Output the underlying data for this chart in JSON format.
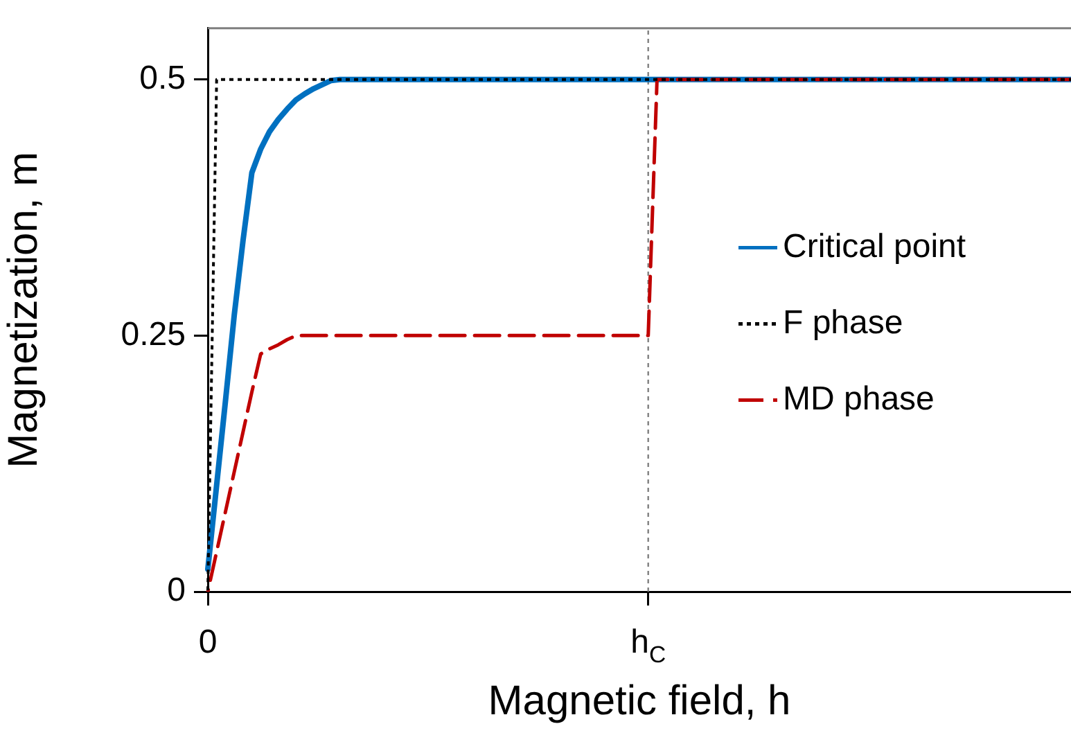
{
  "chart_data": {
    "type": "line",
    "xlabel": "Magnetic field, h",
    "ylabel": "Magnetization, m",
    "categories": [
      "0",
      null,
      null,
      null,
      null,
      null,
      null,
      null,
      null,
      null,
      null,
      null,
      null,
      null,
      null,
      null,
      null,
      null,
      null,
      null,
      null,
      null,
      null,
      null,
      null,
      null,
      null,
      null,
      null,
      null,
      null,
      null,
      null,
      null,
      null,
      null,
      null,
      null,
      null,
      null,
      null,
      null,
      null,
      null,
      null,
      null,
      null,
      null,
      null,
      null,
      "h$_{C}$",
      null,
      null,
      null,
      null,
      null,
      null,
      null,
      null,
      null,
      null,
      null,
      null,
      null,
      null,
      null,
      null,
      null,
      null,
      null,
      null,
      null,
      null,
      null,
      null,
      null,
      null,
      null,
      null,
      null,
      null,
      null,
      null,
      null,
      null,
      null,
      null,
      null,
      null,
      null,
      null,
      null,
      null,
      null,
      null,
      null,
      null,
      null,
      null
    ],
    "ylim": [
      0,
      0.55
    ],
    "yticks": [
      0,
      0.25,
      0.5
    ],
    "series": [
      {
        "name": "Critical point",
        "color": "#0070c0",
        "line_style": "solid",
        "values": [
          0.022,
          0.104,
          0.186,
          0.27,
          0.343,
          0.409,
          0.432,
          0.449,
          0.461,
          0.471,
          0.48,
          0.486,
          0.491,
          0.495,
          0.499,
          0.5,
          0.5,
          0.5,
          0.5,
          0.5,
          0.5,
          0.5,
          0.5,
          0.5,
          0.5,
          0.5,
          0.5,
          0.5,
          0.5,
          0.5,
          0.5,
          0.5,
          0.5,
          0.5,
          0.5,
          0.5,
          0.5,
          0.5,
          0.5,
          0.5,
          0.5,
          0.5,
          0.5,
          0.5,
          0.5,
          0.5,
          0.5,
          0.5,
          0.5,
          0.5,
          0.5,
          0.5,
          0.5,
          0.5,
          0.5,
          0.5,
          0.5,
          0.5,
          0.5,
          0.5,
          0.5,
          0.5,
          0.5,
          0.5,
          0.5,
          0.5,
          0.5,
          0.5,
          0.5,
          0.5,
          0.5,
          0.5,
          0.5,
          0.5,
          0.5,
          0.5,
          0.5,
          0.5,
          0.5,
          0.5,
          0.5,
          0.5,
          0.5,
          0.5,
          0.5,
          0.5,
          0.5,
          0.5,
          0.5,
          0.5,
          0.5,
          0.5,
          0.5,
          0.5,
          0.5,
          0.5,
          0.5,
          0.5,
          0.5
        ]
      },
      {
        "name": "F phase",
        "color": "#000000",
        "line_style": "dotted",
        "values": [
          0,
          0.5,
          0.5,
          0.5,
          0.5,
          0.5,
          0.5,
          0.5,
          0.5,
          0.5,
          0.5,
          0.5,
          0.5,
          0.5,
          0.5,
          0.5,
          0.5,
          0.5,
          0.5,
          0.5,
          0.5,
          0.5,
          0.5,
          0.5,
          0.5,
          0.5,
          0.5,
          0.5,
          0.5,
          0.5,
          0.5,
          0.5,
          0.5,
          0.5,
          0.5,
          0.5,
          0.5,
          0.5,
          0.5,
          0.5,
          0.5,
          0.5,
          0.5,
          0.5,
          0.5,
          0.5,
          0.5,
          0.5,
          0.5,
          0.5,
          0.5,
          0.5,
          0.5,
          0.5,
          0.5,
          0.5,
          0.5,
          0.5,
          0.5,
          0.5,
          0.5,
          0.5,
          0.5,
          0.5,
          0.5,
          0.5,
          0.5,
          0.5,
          0.5,
          0.5,
          0.5,
          0.5,
          0.5,
          0.5,
          0.5,
          0.5,
          0.5,
          0.5,
          0.5,
          0.5,
          0.5,
          0.5,
          0.5,
          0.5,
          0.5,
          0.5,
          0.5,
          0.5,
          0.5,
          0.5,
          0.5,
          0.5,
          0.5,
          0.5,
          0.5,
          0.5,
          0.5,
          0.5,
          0.5
        ]
      },
      {
        "name": "MD phase",
        "color": "#c00000",
        "line_style": "dashed",
        "values": [
          0,
          0.039,
          0.078,
          0.117,
          0.156,
          0.195,
          0.232,
          0.237,
          0.241,
          0.246,
          0.25,
          0.25,
          0.25,
          0.25,
          0.25,
          0.25,
          0.25,
          0.25,
          0.25,
          0.25,
          0.25,
          0.25,
          0.25,
          0.25,
          0.25,
          0.25,
          0.25,
          0.25,
          0.25,
          0.25,
          0.25,
          0.25,
          0.25,
          0.25,
          0.25,
          0.25,
          0.25,
          0.25,
          0.25,
          0.25,
          0.25,
          0.25,
          0.25,
          0.25,
          0.25,
          0.25,
          0.25,
          0.25,
          0.25,
          0.25,
          0.25,
          0.5,
          0.5,
          0.5,
          0.5,
          0.5,
          0.5,
          0.5,
          0.5,
          0.5,
          0.5,
          0.5,
          0.5,
          0.5,
          0.5,
          0.5,
          0.5,
          0.5,
          0.5,
          0.5,
          0.5,
          0.5,
          0.5,
          0.5,
          0.5,
          0.5,
          0.5,
          0.5,
          0.5,
          0.5,
          0.5,
          0.5,
          0.5,
          0.5,
          0.5,
          0.5,
          0.5,
          0.5,
          0.5,
          0.5,
          0.5,
          0.5,
          0.5,
          0.5,
          0.5,
          0.5,
          0.5,
          0.5,
          0.5
        ]
      }
    ],
    "ref_lines": [
      {
        "axis": "x",
        "value": "h$_{C}$",
        "color": "#808080",
        "line_style": "dotted"
      }
    ],
    "grid": false,
    "legend": "right",
    "marker": "none"
  }
}
